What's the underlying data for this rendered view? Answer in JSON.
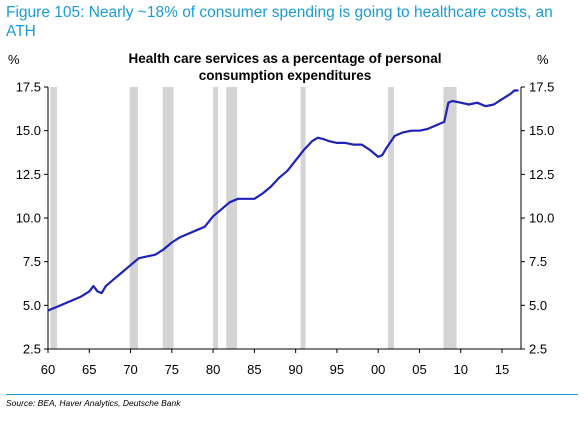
{
  "figure": {
    "title": "Figure 105: Nearly ~18% of consumer spending is going to healthcare costs, an ATH",
    "source": "Source: BEA, Haver Analytics, Deutsche Bank"
  },
  "colors": {
    "line": "#1f22b8",
    "recession": "#d4d4d4",
    "title": "#1a9bd7"
  },
  "chart_data": {
    "type": "line",
    "title_lines": [
      "Health care services as a percentage of personal",
      "consumption expenditures"
    ],
    "left_unit": "%",
    "right_unit": "%",
    "xlim": [
      1960,
      2017.3
    ],
    "ylim": [
      2.5,
      17.5
    ],
    "y_ticks": [
      2.5,
      5.0,
      7.5,
      10.0,
      12.5,
      15.0,
      17.5
    ],
    "y_tick_labels": [
      "2.5",
      "5.0",
      "7.5",
      "10.0",
      "12.5",
      "15.0",
      "17.5"
    ],
    "x_ticks": [
      1960,
      1965,
      1970,
      1975,
      1980,
      1985,
      1990,
      1995,
      2000,
      2005,
      2010,
      2015
    ],
    "x_tick_labels": [
      "60",
      "65",
      "70",
      "75",
      "80",
      "85",
      "90",
      "95",
      "00",
      "05",
      "10",
      "15"
    ],
    "recessions": [
      [
        1960.3,
        1961.1
      ],
      [
        1969.9,
        1970.9
      ],
      [
        1973.9,
        1975.2
      ],
      [
        1980.0,
        1980.6
      ],
      [
        1981.6,
        1982.9
      ],
      [
        1990.6,
        1991.2
      ],
      [
        2001.2,
        2001.9
      ],
      [
        2007.9,
        2009.5
      ]
    ],
    "grid": false,
    "legend": "none",
    "series": [
      {
        "x": [
          1960.0,
          1960.5,
          1961.0,
          1962.0,
          1963.0,
          1964.0,
          1965.0,
          1965.5,
          1966.0,
          1966.5,
          1967.0,
          1968.0,
          1969.0,
          1970.0,
          1971.0,
          1972.0,
          1973.0,
          1974.0,
          1975.0,
          1976.0,
          1977.0,
          1978.0,
          1979.0,
          1980.0,
          1981.0,
          1982.0,
          1983.0,
          1984.0,
          1985.0,
          1986.0,
          1987.0,
          1988.0,
          1989.0,
          1990.0,
          1991.0,
          1992.0,
          1992.7,
          1993.5,
          1994.0,
          1995.0,
          1996.0,
          1997.0,
          1998.0,
          1999.0,
          2000.0,
          2000.5,
          2001.0,
          2002.0,
          2003.0,
          2004.0,
          2005.0,
          2006.0,
          2007.0,
          2008.0,
          2008.5,
          2009.0,
          2010.0,
          2011.0,
          2012.0,
          2013.0,
          2014.0,
          2015.0,
          2016.0,
          2016.5,
          2017.0
        ],
        "y": [
          4.7,
          4.8,
          4.9,
          5.1,
          5.3,
          5.5,
          5.8,
          6.1,
          5.8,
          5.7,
          6.1,
          6.5,
          6.9,
          7.3,
          7.7,
          7.8,
          7.9,
          8.2,
          8.6,
          8.9,
          9.1,
          9.3,
          9.5,
          10.1,
          10.5,
          10.9,
          11.1,
          11.1,
          11.1,
          11.4,
          11.8,
          12.3,
          12.7,
          13.3,
          13.9,
          14.4,
          14.6,
          14.5,
          14.4,
          14.3,
          14.3,
          14.2,
          14.2,
          13.9,
          13.5,
          13.6,
          14.0,
          14.7,
          14.9,
          15.0,
          15.0,
          15.1,
          15.3,
          15.5,
          16.6,
          16.7,
          16.6,
          16.5,
          16.6,
          16.4,
          16.5,
          16.8,
          17.1,
          17.3,
          17.3
        ]
      }
    ]
  }
}
